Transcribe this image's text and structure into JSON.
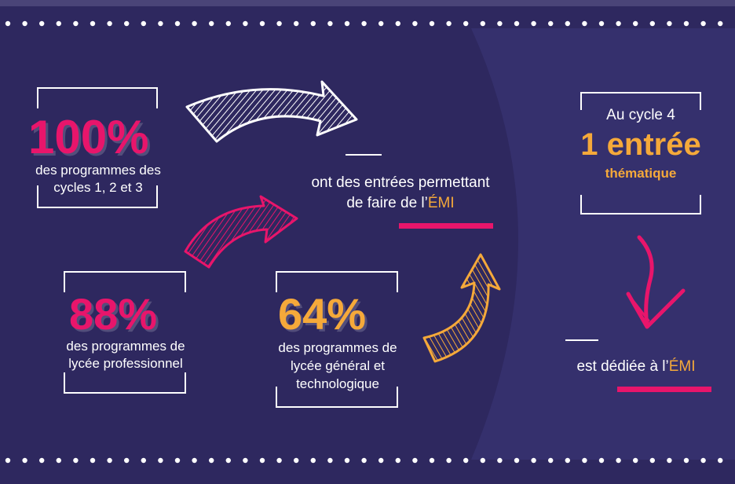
{
  "colors": {
    "background": "#2e285f",
    "panel": "#35306d",
    "pink": "#e8156b",
    "orange": "#f5a93a",
    "white": "#ffffff"
  },
  "stat_100": {
    "value": "100%",
    "label_line1": "des programmes des",
    "label_line2": "cycles 1, 2 et 3"
  },
  "stat_88": {
    "value": "88%",
    "label_line1": "des programmes de",
    "label_line2": "lycée professionnel"
  },
  "stat_64": {
    "value": "64%",
    "label_line1": "des programmes de",
    "label_line2": "lycée général et",
    "label_line3": "technologique"
  },
  "center": {
    "line1": "ont des entrées permettant",
    "line2_prefix": "de faire de l’",
    "line2_emi": "ÉMI"
  },
  "cycle4": {
    "heading": "Au cycle 4",
    "big": "1 entrée",
    "sub": "thématique"
  },
  "dediee": {
    "prefix": "est dédiée à l’",
    "emi": "ÉMI"
  },
  "icons": [
    "white-arrow-icon",
    "pink-arrow-icon",
    "orange-arrow-icon",
    "pink-down-arrow-icon"
  ]
}
